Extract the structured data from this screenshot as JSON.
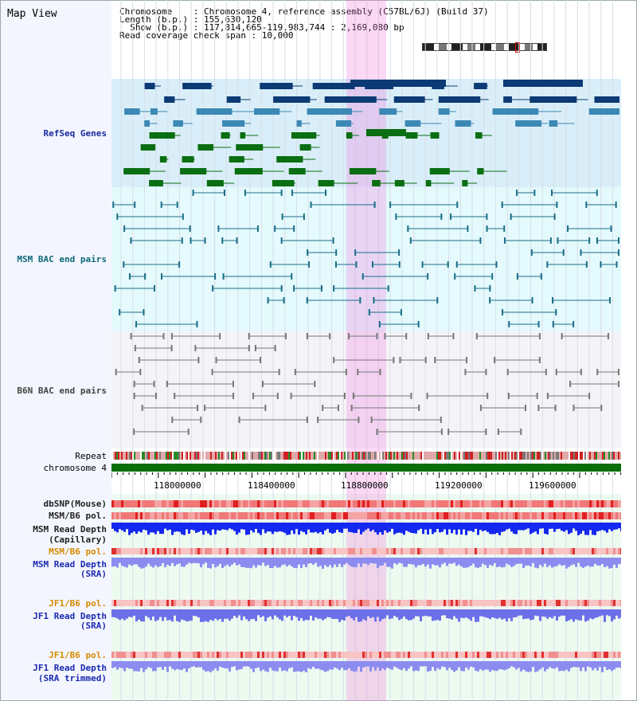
{
  "title": "Map View",
  "header": {
    "line1": "Chromosome    : Chromosome 4, reference assembly (C57BL/6J) (Build 37)",
    "line2": "Length (b.p.) : 155,630,120",
    "line3": "  Show (b.p.) : 117,814,665-119,983,744 : 2,169,080 bp",
    "line4": "Read coverage check span : 10,000"
  },
  "tracks": {
    "refseq": "RefSeq Genes",
    "msm_bac": "MSM BAC end pairs",
    "b6n_bac": "B6N BAC end pairs",
    "repeat": "Repeat",
    "chromosome": "chromosome 4",
    "dbsnp": "dbSNP(Mouse)",
    "msm_pol": "MSM/B6 pol.",
    "msm_depth_cap_1": "MSM Read Depth",
    "msm_depth_cap_2": "(Capillary)",
    "msm_pol_sra": "MSM/B6 pol.",
    "msm_depth_sra_1": "MSM Read Depth",
    "msm_depth_sra_2": "(SRA)",
    "jf1_pol": "JF1/B6 pol.",
    "jf1_depth_1": "JF1 Read Depth",
    "jf1_depth_2": "(SRA)",
    "jf1_pol_2": "JF1/B6 pol.",
    "jf1_trim_1": "JF1 Read Depth",
    "jf1_trim_2": "(SRA trimmed)"
  },
  "axis_ticks": [
    "118000000",
    "118400000",
    "118800000",
    "119200000",
    "119600000"
  ],
  "colors": {
    "refseq_bg": "#d9eef8",
    "msm_bg": "#e4fafc",
    "b6n_bg": "#f4f4f8",
    "highlight": "#f4b4ea",
    "refseq_dark": "#0b3a74",
    "refseq_mid": "#3c88b4",
    "refseq_green": "#0a6e12",
    "msm_line": "#1b6e88",
    "b6n_line": "#777777",
    "chrom_green": "#0a6e0a",
    "depth_blue": "#1428f0",
    "sra_violet": "#8c8cf0"
  }
}
